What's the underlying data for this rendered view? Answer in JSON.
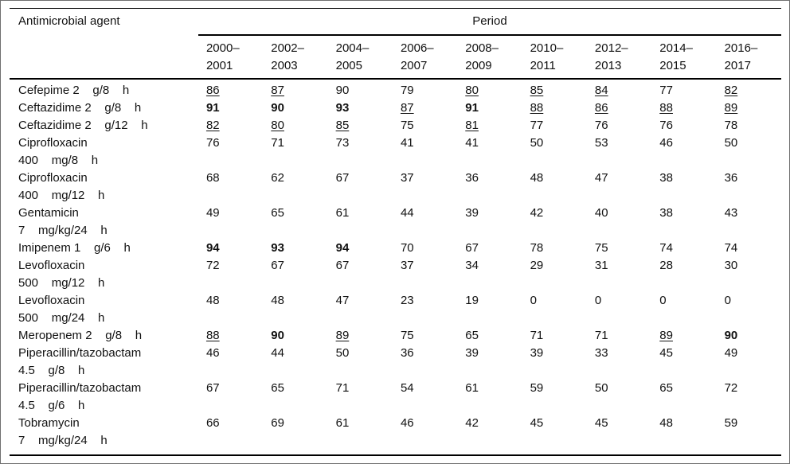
{
  "table": {
    "agent_header": "Antimicrobial agent",
    "period_header": "Period",
    "periods": [
      "2000–\n2001",
      "2002–\n2003",
      "2004–\n2005",
      "2006–\n2007",
      "2008–\n2009",
      "2010–\n2011",
      "2012–\n2013",
      "2014–\n2015",
      "2016–\n2017"
    ],
    "rows": [
      {
        "agent": "Cefepime 2    g/8    h",
        "values": [
          86,
          87,
          90,
          79,
          80,
          85,
          84,
          77,
          82
        ],
        "fmt": [
          "u",
          "u",
          "p",
          "p",
          "u",
          "u",
          "u",
          "p",
          "u"
        ]
      },
      {
        "agent": "Ceftazidime 2    g/8    h",
        "values": [
          91,
          90,
          93,
          87,
          91,
          88,
          86,
          88,
          89
        ],
        "fmt": [
          "b",
          "b",
          "b",
          "u",
          "b",
          "u",
          "u",
          "u",
          "u"
        ]
      },
      {
        "agent": "Ceftazidime 2    g/12    h",
        "values": [
          82,
          80,
          85,
          75,
          81,
          77,
          76,
          76,
          78
        ],
        "fmt": [
          "u",
          "u",
          "u",
          "p",
          "u",
          "p",
          "p",
          "p",
          "p"
        ]
      },
      {
        "agent": "Ciprofloxacin\n400    mg/8    h",
        "values": [
          76,
          71,
          73,
          41,
          41,
          50,
          53,
          46,
          50
        ],
        "fmt": [
          "p",
          "p",
          "p",
          "p",
          "p",
          "p",
          "p",
          "p",
          "p"
        ]
      },
      {
        "agent": "Ciprofloxacin\n400    mg/12    h",
        "values": [
          68,
          62,
          67,
          37,
          36,
          48,
          47,
          38,
          36
        ],
        "fmt": [
          "p",
          "p",
          "p",
          "p",
          "p",
          "p",
          "p",
          "p",
          "p"
        ]
      },
      {
        "agent": "Gentamicin\n7    mg/kg/24    h",
        "values": [
          49,
          65,
          61,
          44,
          39,
          42,
          40,
          38,
          43
        ],
        "fmt": [
          "p",
          "p",
          "p",
          "p",
          "p",
          "p",
          "p",
          "p",
          "p"
        ]
      },
      {
        "agent": "Imipenem 1    g/6    h",
        "values": [
          94,
          93,
          94,
          70,
          67,
          78,
          75,
          74,
          74
        ],
        "fmt": [
          "b",
          "b",
          "b",
          "p",
          "p",
          "p",
          "p",
          "p",
          "p"
        ]
      },
      {
        "agent": "Levofloxacin\n500    mg/12    h",
        "values": [
          72,
          67,
          67,
          37,
          34,
          29,
          31,
          28,
          30
        ],
        "fmt": [
          "p",
          "p",
          "p",
          "p",
          "p",
          "p",
          "p",
          "p",
          "p"
        ]
      },
      {
        "agent": "Levofloxacin\n500    mg/24    h",
        "values": [
          48,
          48,
          47,
          23,
          19,
          0,
          0,
          0,
          0
        ],
        "fmt": [
          "p",
          "p",
          "p",
          "p",
          "p",
          "p",
          "p",
          "p",
          "p"
        ]
      },
      {
        "agent": "Meropenem 2    g/8    h",
        "values": [
          88,
          90,
          89,
          75,
          65,
          71,
          71,
          89,
          90
        ],
        "fmt": [
          "u",
          "b",
          "u",
          "p",
          "p",
          "p",
          "p",
          "u",
          "b"
        ]
      },
      {
        "agent": "Piperacillin/tazobactam\n4.5    g/8    h",
        "values": [
          46,
          44,
          50,
          36,
          39,
          39,
          33,
          45,
          49
        ],
        "fmt": [
          "p",
          "p",
          "p",
          "p",
          "p",
          "p",
          "p",
          "p",
          "p"
        ]
      },
      {
        "agent": "Piperacillin/tazobactam\n4.5    g/6    h",
        "values": [
          67,
          65,
          71,
          54,
          61,
          59,
          50,
          65,
          72
        ],
        "fmt": [
          "p",
          "p",
          "p",
          "p",
          "p",
          "p",
          "p",
          "p",
          "p"
        ]
      },
      {
        "agent": "Tobramycin\n7    mg/kg/24    h",
        "values": [
          66,
          69,
          61,
          46,
          42,
          45,
          45,
          48,
          59
        ],
        "fmt": [
          "p",
          "p",
          "p",
          "p",
          "p",
          "p",
          "p",
          "p",
          "p"
        ]
      }
    ]
  }
}
